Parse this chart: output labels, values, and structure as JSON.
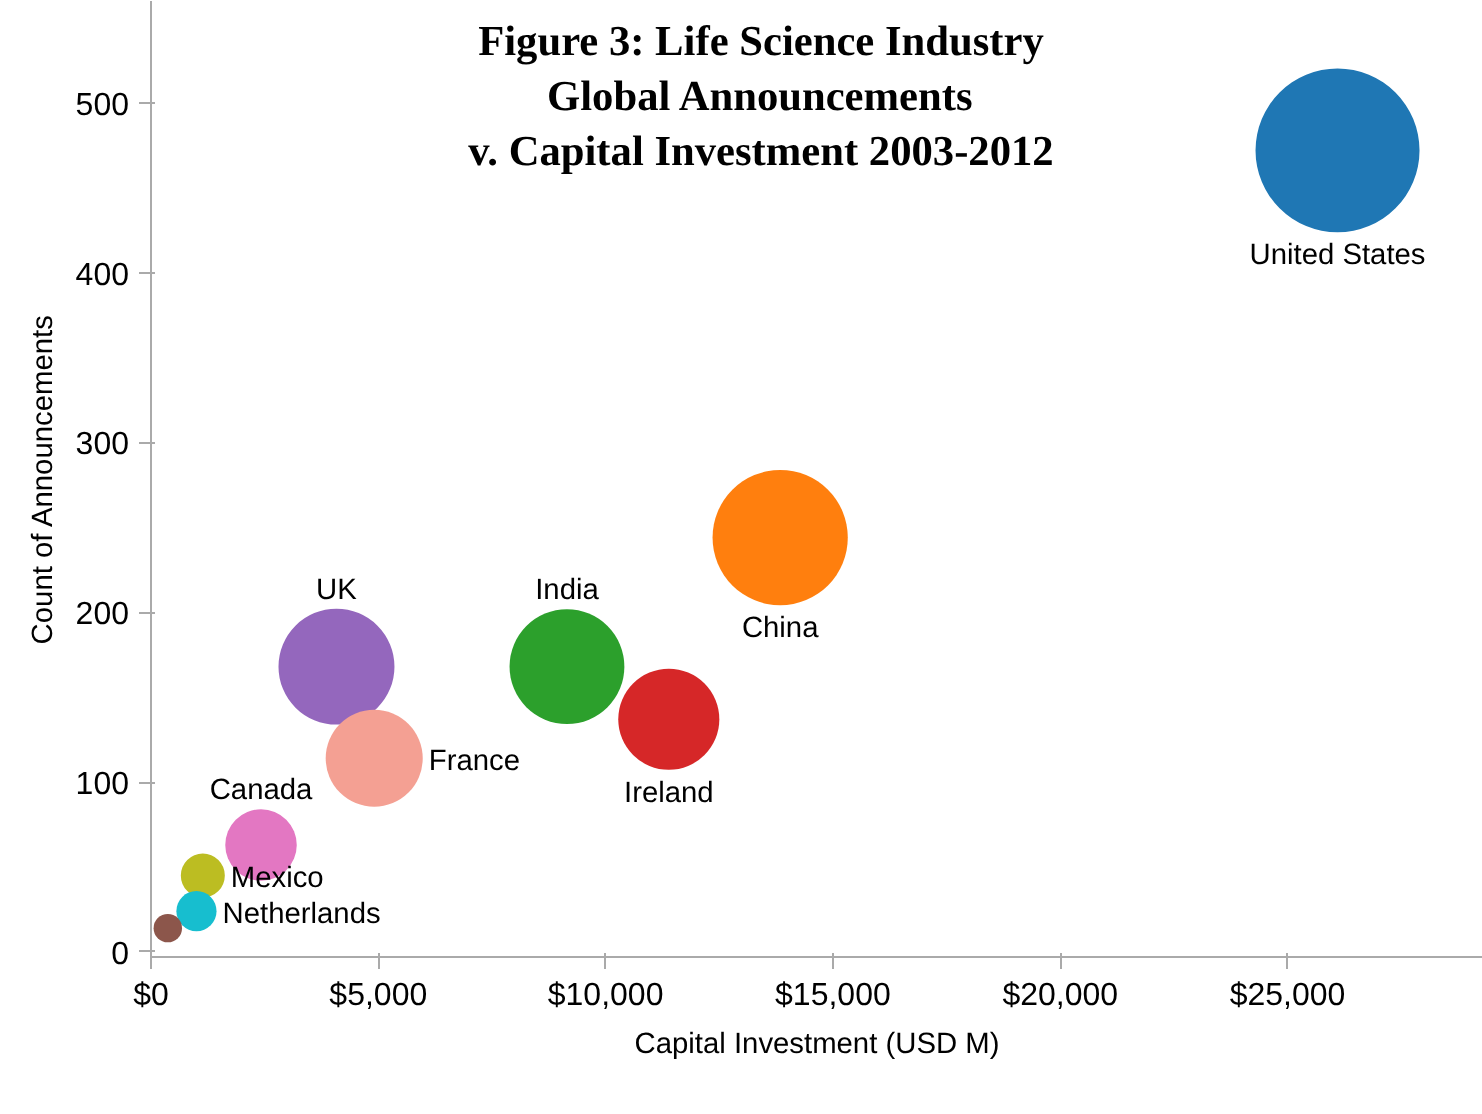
{
  "chart_data": {
    "type": "bubble",
    "title": "Figure 3: Life Science Industry\nGlobal Announcements\nv. Capital Investment 2003-2012",
    "xlabel": "Capital Investment (USD M)",
    "ylabel": "Count of Announcements",
    "xlim": [
      0,
      29300
    ],
    "ylim": [
      -3,
      560
    ],
    "xticks": [
      {
        "value": 0,
        "label": "$0"
      },
      {
        "value": 5000,
        "label": "$5,000"
      },
      {
        "value": 10000,
        "label": "$10,000"
      },
      {
        "value": 15000,
        "label": "$15,000"
      },
      {
        "value": 20000,
        "label": "$20,000"
      },
      {
        "value": 25000,
        "label": "$25,000"
      }
    ],
    "yticks": [
      0,
      100,
      200,
      300,
      400,
      500
    ],
    "grid": false,
    "series": [
      {
        "name": "United States",
        "color": "#1f77b4",
        "x": [
          26100
        ],
        "values": [
          472
        ],
        "sizes": [
          1
        ]
      },
      {
        "name": "China",
        "color": "#ff7f0e",
        "x": [
          13840
        ],
        "values": [
          244
        ],
        "sizes": [
          0.68
        ]
      },
      {
        "name": "India",
        "color": "#2ca02c",
        "x": [
          9150
        ],
        "values": [
          168
        ],
        "sizes": [
          0.49
        ]
      },
      {
        "name": "Ireland",
        "color": "#d62728",
        "x": [
          11390
        ],
        "values": [
          137
        ],
        "sizes": [
          0.38
        ]
      },
      {
        "name": "UK",
        "color": "#9467bd",
        "x": [
          4080
        ],
        "values": [
          168
        ],
        "sizes": [
          0.5
        ]
      },
      {
        "name": "France",
        "color": "#f4a093",
        "x": [
          4910
        ],
        "values": [
          114
        ],
        "sizes": [
          0.35
        ]
      },
      {
        "name": "Canada",
        "color": "#e377c2",
        "x": [
          2420
        ],
        "values": [
          63
        ],
        "sizes": [
          0.19
        ]
      },
      {
        "name": "Mexico",
        "color": "#bcbd22",
        "x": [
          1140
        ],
        "values": [
          45
        ],
        "sizes": [
          0.072
        ]
      },
      {
        "name": "Netherlands",
        "color": "#17becf",
        "x": [
          1000
        ],
        "values": [
          24
        ],
        "sizes": [
          0.06
        ]
      },
      {
        "color": "#8c564b",
        "x": [
          370
        ],
        "values": [
          14
        ],
        "sizes": [
          0.03
        ]
      }
    ]
  }
}
